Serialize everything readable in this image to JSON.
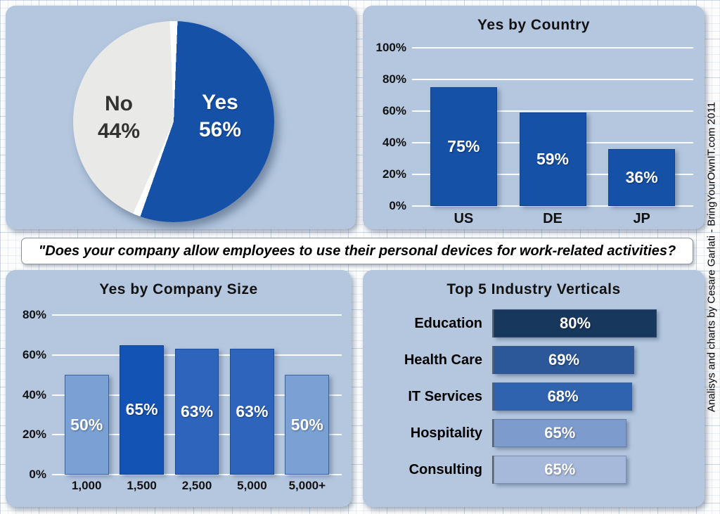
{
  "credit": "Analisys and charts by Cesare Garlati - BringYourOwnIT.com 2011",
  "quote": "\"Does your company allow employees to use their personal devices for work-related activities?",
  "colors": {
    "panel_background": "#b4c7df",
    "primary_blue": "#1651a8",
    "pie_no_gray": "#e9e9e7",
    "gridline_white": "#ffffff"
  },
  "chart_data": [
    {
      "type": "pie",
      "title": "",
      "slices": [
        {
          "label": "Yes",
          "value": 56,
          "value_label": "56%",
          "color": "#1651a8",
          "text_color": "#ffffff"
        },
        {
          "label": "No",
          "value": 44,
          "value_label": "44%",
          "color": "#e9e9e7",
          "text_color": "#333333"
        }
      ]
    },
    {
      "type": "bar",
      "title": "Yes by Country",
      "categories": [
        "US",
        "DE",
        "JP"
      ],
      "values": [
        75,
        59,
        36
      ],
      "value_labels": [
        "75%",
        "59%",
        "36%"
      ],
      "bar_colors": [
        "#1651a8",
        "#1651a8",
        "#1651a8"
      ],
      "ylim": [
        0,
        100
      ],
      "yticks": [
        100,
        80,
        60,
        40,
        20,
        0
      ],
      "ytick_labels": [
        "100%",
        "80%",
        "60%",
        "40%",
        "20%",
        "0%"
      ],
      "grid": true,
      "legend": "none"
    },
    {
      "type": "bar",
      "title": "Yes by Company Size",
      "categories": [
        "1,000",
        "1,500",
        "2,500",
        "5,000",
        "5,000+"
      ],
      "values": [
        50,
        65,
        63,
        63,
        50
      ],
      "value_labels": [
        "50%",
        "65%",
        "63%",
        "63%",
        "50%"
      ],
      "bar_colors": [
        "#7ba1d4",
        "#1253b4",
        "#2f64bd",
        "#2f64bd",
        "#7ba1d4"
      ],
      "ylim": [
        0,
        80
      ],
      "yticks": [
        80,
        60,
        40,
        20,
        0
      ],
      "ytick_labels": [
        "80%",
        "60%",
        "40%",
        "20%",
        "0%"
      ],
      "grid": true,
      "legend": "none"
    },
    {
      "type": "bar_horizontal",
      "title": "Top 5 Industry  Verticals",
      "categories": [
        "Education",
        "Health Care",
        "IT Services",
        "Hospitality",
        "Consulting"
      ],
      "values": [
        80,
        69,
        68,
        65,
        65
      ],
      "value_labels": [
        "80%",
        "69%",
        "68%",
        "65%",
        "65%"
      ],
      "bar_colors": [
        "#17375d",
        "#2c5899",
        "#2f63b0",
        "#7e9bcd",
        "#a6b9da"
      ],
      "xlim": [
        0,
        100
      ],
      "grid": false,
      "legend": "none"
    }
  ]
}
